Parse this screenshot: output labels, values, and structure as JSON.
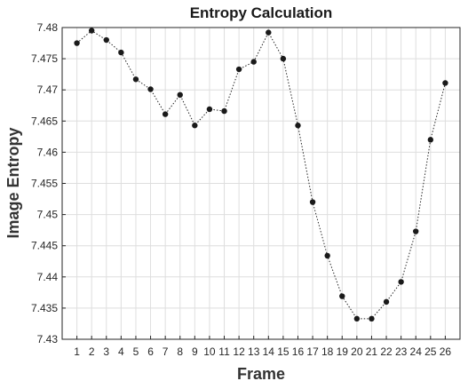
{
  "chart_data": {
    "type": "line",
    "title": "Entropy Calculation",
    "xlabel": "Frame",
    "ylabel": "Image Entropy",
    "x": [
      1,
      2,
      3,
      4,
      5,
      6,
      7,
      8,
      9,
      10,
      11,
      12,
      13,
      14,
      15,
      16,
      17,
      18,
      19,
      20,
      21,
      22,
      23,
      24,
      25,
      26
    ],
    "series": [
      {
        "values": [
          7.4775,
          7.4795,
          7.478,
          7.476,
          7.4717,
          7.4701,
          7.4661,
          7.4692,
          7.4643,
          7.4669,
          7.4666,
          7.4733,
          7.4745,
          7.4792,
          7.475,
          7.4643,
          7.452,
          7.4434,
          7.4369,
          7.4333,
          7.4333,
          7.436,
          7.4392,
          7.4473,
          7.462,
          7.4711
        ]
      }
    ],
    "xlim": [
      0,
      27
    ],
    "ylim": [
      7.43,
      7.48
    ],
    "xticks": [
      "1",
      "2",
      "3",
      "4",
      "5",
      "6",
      "7",
      "8",
      "9",
      "10",
      "11",
      "12",
      "13",
      "14",
      "15",
      "16",
      "17",
      "18",
      "19",
      "20",
      "21",
      "22",
      "23",
      "24",
      "25",
      "26"
    ],
    "yticks": [
      "7.43",
      "7.435",
      "7.44",
      "7.445",
      "7.45",
      "7.455",
      "7.46",
      "7.465",
      "7.47",
      "7.475",
      "7.48"
    ],
    "grid": true,
    "colors": {
      "series": "#1a1a1a",
      "axis": "#262626",
      "grid": "#dedede"
    }
  }
}
